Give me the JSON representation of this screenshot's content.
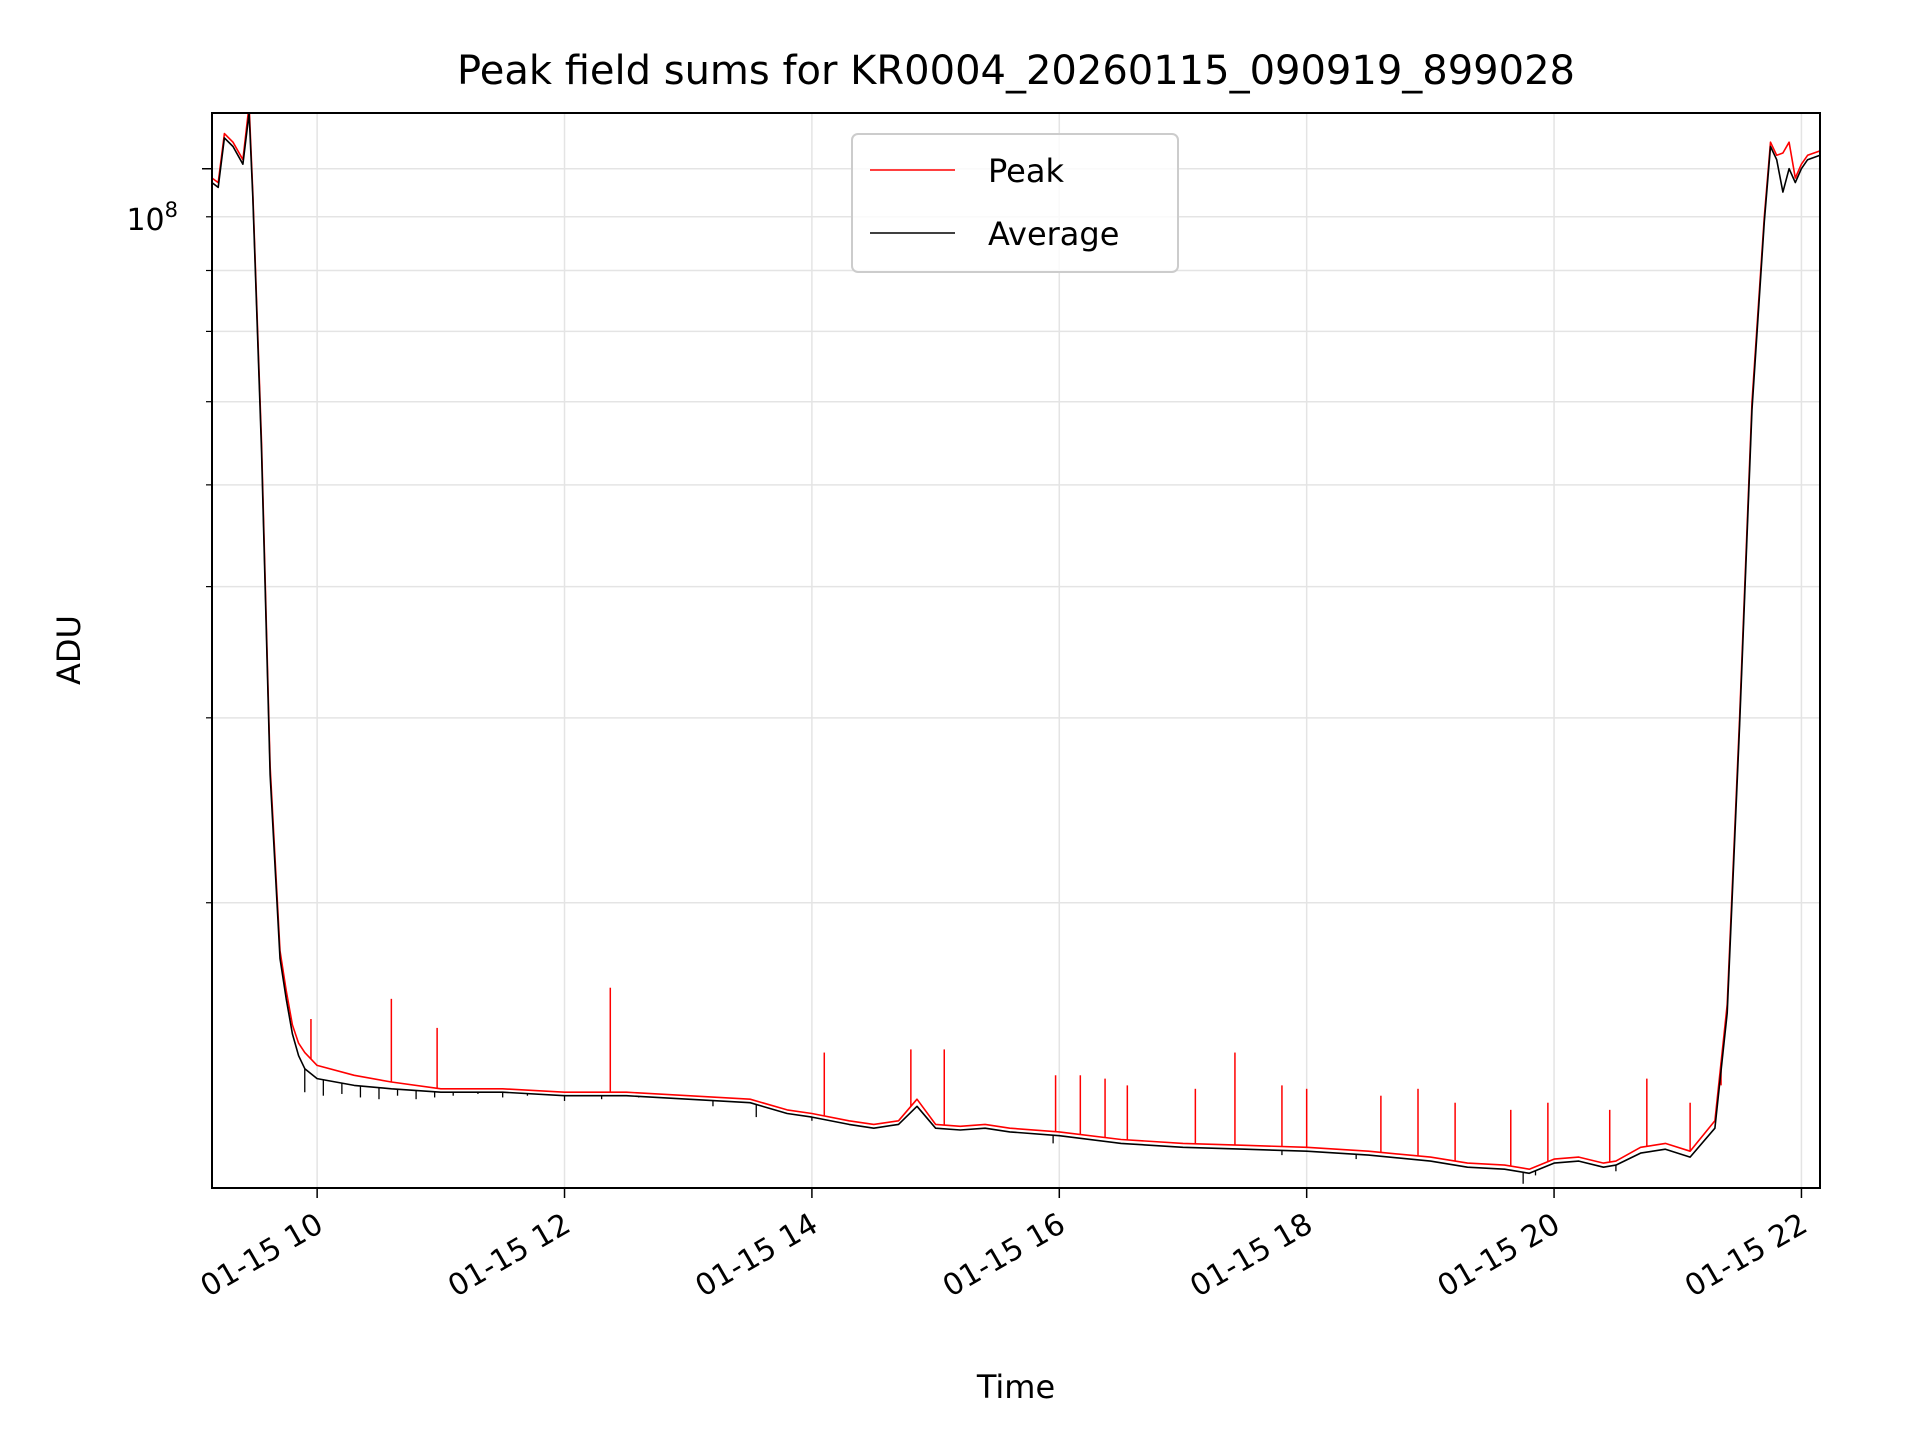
{
  "chart_data": {
    "type": "line",
    "title": "Peak field sums for KR0004_20260115_090919_899028",
    "xlabel": "Time",
    "ylabel": "ADU",
    "yscale": "log",
    "y_tick_label": "10^8",
    "y_tick_label_base": "10",
    "y_tick_label_exp": "8",
    "xlim_hours": [
      9.15,
      22.15
    ],
    "ylim": [
      10700000,
      113000000
    ],
    "x_ticks": [
      {
        "hour": 10,
        "label": "01-15 10"
      },
      {
        "hour": 12,
        "label": "01-15 12"
      },
      {
        "hour": 14,
        "label": "01-15 14"
      },
      {
        "hour": 16,
        "label": "01-15 16"
      },
      {
        "hour": 18,
        "label": "01-15 18"
      },
      {
        "hour": 20,
        "label": "01-15 20"
      },
      {
        "hour": 22,
        "label": "01-15 22"
      }
    ],
    "y_minor_ticks": [
      20000000,
      30000000,
      40000000,
      50000000,
      60000000,
      70000000,
      80000000,
      90000000
    ],
    "grid": true,
    "legend_position": "top-center",
    "series": [
      {
        "name": "Peak",
        "color": "#ff0000",
        "x": [
          9.15,
          9.2,
          9.25,
          9.32,
          9.4,
          9.45,
          9.48,
          9.55,
          9.62,
          9.7,
          9.75,
          9.8,
          9.85,
          9.9,
          10.0,
          10.3,
          10.6,
          11.0,
          11.5,
          12.0,
          12.5,
          13.0,
          13.5,
          13.8,
          14.0,
          14.3,
          14.5,
          14.7,
          14.85,
          15.0,
          15.2,
          15.4,
          15.6,
          16.0,
          16.5,
          17.0,
          17.5,
          18.0,
          18.5,
          19.0,
          19.3,
          19.6,
          19.8,
          20.0,
          20.2,
          20.4,
          20.5,
          20.7,
          20.9,
          21.1,
          21.3,
          21.4,
          21.5,
          21.6,
          21.7,
          21.75,
          21.8,
          21.85,
          21.9,
          21.95,
          22.0,
          22.05,
          22.15
        ],
        "y": [
          98000000,
          97000000,
          108000000,
          106000000,
          102000000,
          115000000,
          95000000,
          55000000,
          27000000,
          18000000,
          16500000,
          15300000,
          14700000,
          14400000,
          14000000,
          13700000,
          13500000,
          13300000,
          13300000,
          13200000,
          13200000,
          13100000,
          13000000,
          12700000,
          12600000,
          12400000,
          12300000,
          12400000,
          13000000,
          12300000,
          12250000,
          12300000,
          12200000,
          12100000,
          11900000,
          11800000,
          11750000,
          11700000,
          11600000,
          11450000,
          11300000,
          11250000,
          11150000,
          11400000,
          11450000,
          11300000,
          11350000,
          11700000,
          11800000,
          11600000,
          12400000,
          16000000,
          30000000,
          60000000,
          90000000,
          106000000,
          103000000,
          103500000,
          106000000,
          98000000,
          101000000,
          103000000,
          104000000
        ]
      },
      {
        "name": "Average",
        "color": "#000000",
        "x": [
          9.15,
          9.2,
          9.25,
          9.32,
          9.4,
          9.45,
          9.48,
          9.55,
          9.62,
          9.7,
          9.75,
          9.8,
          9.85,
          9.9,
          10.0,
          10.3,
          10.6,
          11.0,
          11.5,
          12.0,
          12.5,
          13.0,
          13.5,
          13.8,
          14.0,
          14.3,
          14.5,
          14.7,
          14.85,
          15.0,
          15.2,
          15.4,
          15.6,
          16.0,
          16.5,
          17.0,
          17.5,
          18.0,
          18.5,
          19.0,
          19.3,
          19.6,
          19.8,
          20.0,
          20.2,
          20.4,
          20.5,
          20.7,
          20.9,
          21.1,
          21.3,
          21.4,
          21.5,
          21.6,
          21.7,
          21.75,
          21.8,
          21.85,
          21.9,
          21.95,
          22.0,
          22.05,
          22.15
        ],
        "y": [
          97000000,
          96000000,
          107000000,
          105000000,
          101000000,
          113000000,
          94000000,
          54000000,
          26500000,
          17700000,
          16200000,
          15000000,
          14300000,
          13900000,
          13600000,
          13400000,
          13300000,
          13200000,
          13200000,
          13100000,
          13100000,
          13000000,
          12900000,
          12600000,
          12500000,
          12300000,
          12200000,
          12300000,
          12800000,
          12200000,
          12150000,
          12200000,
          12100000,
          12000000,
          11800000,
          11700000,
          11650000,
          11600000,
          11500000,
          11350000,
          11200000,
          11150000,
          11050000,
          11300000,
          11350000,
          11200000,
          11250000,
          11550000,
          11650000,
          11450000,
          12200000,
          15700000,
          29500000,
          59000000,
          89000000,
          105000000,
          102000000,
          95000000,
          100000000,
          97000000,
          100000000,
          102000000,
          103000000
        ]
      }
    ],
    "noise_dips": [
      {
        "hour": 9.9,
        "value": 13200000
      },
      {
        "hour": 10.05,
        "value": 13100000
      },
      {
        "hour": 10.2,
        "value": 13150000
      },
      {
        "hour": 10.35,
        "value": 13050000
      },
      {
        "hour": 10.5,
        "value": 13000000
      },
      {
        "hour": 10.65,
        "value": 13100000
      },
      {
        "hour": 10.8,
        "value": 13000000
      },
      {
        "hour": 10.95,
        "value": 13050000
      },
      {
        "hour": 11.1,
        "value": 13100000
      },
      {
        "hour": 11.3,
        "value": 13150000
      },
      {
        "hour": 11.5,
        "value": 13050000
      },
      {
        "hour": 11.7,
        "value": 13100000
      },
      {
        "hour": 12.0,
        "value": 12950000
      },
      {
        "hour": 12.3,
        "value": 13000000
      },
      {
        "hour": 12.6,
        "value": 13050000
      },
      {
        "hour": 13.2,
        "value": 12800000
      },
      {
        "hour": 13.55,
        "value": 12500000
      },
      {
        "hour": 14.0,
        "value": 12400000
      },
      {
        "hour": 15.95,
        "value": 11800000
      },
      {
        "hour": 17.8,
        "value": 11500000
      },
      {
        "hour": 18.4,
        "value": 11400000
      },
      {
        "hour": 19.75,
        "value": 10800000
      },
      {
        "hour": 19.85,
        "value": 11000000
      },
      {
        "hour": 20.5,
        "value": 11100000
      }
    ],
    "peak_spikes": [
      {
        "hour": 9.95,
        "value": 15500000
      },
      {
        "hour": 10.6,
        "value": 16200000
      },
      {
        "hour": 10.97,
        "value": 15200000
      },
      {
        "hour": 12.37,
        "value": 16600000
      },
      {
        "hour": 14.1,
        "value": 14400000
      },
      {
        "hour": 14.8,
        "value": 14500000
      },
      {
        "hour": 15.07,
        "value": 14500000
      },
      {
        "hour": 15.97,
        "value": 13700000
      },
      {
        "hour": 16.17,
        "value": 13700000
      },
      {
        "hour": 16.37,
        "value": 13600000
      },
      {
        "hour": 16.55,
        "value": 13400000
      },
      {
        "hour": 17.1,
        "value": 13300000
      },
      {
        "hour": 17.42,
        "value": 14400000
      },
      {
        "hour": 17.8,
        "value": 13400000
      },
      {
        "hour": 18.0,
        "value": 13300000
      },
      {
        "hour": 18.6,
        "value": 13100000
      },
      {
        "hour": 18.9,
        "value": 13300000
      },
      {
        "hour": 19.2,
        "value": 12900000
      },
      {
        "hour": 19.65,
        "value": 12700000
      },
      {
        "hour": 19.95,
        "value": 12900000
      },
      {
        "hour": 20.45,
        "value": 12700000
      },
      {
        "hour": 20.75,
        "value": 13600000
      },
      {
        "hour": 21.1,
        "value": 12900000
      },
      {
        "hour": 21.35,
        "value": 13400000
      }
    ]
  }
}
